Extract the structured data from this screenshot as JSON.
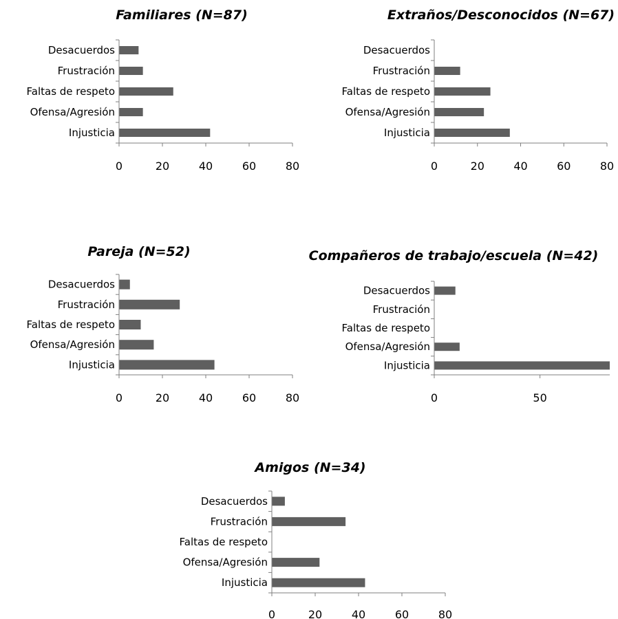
{
  "chart_data": [
    {
      "type": "bar",
      "orientation": "horizontal",
      "title": "Familiares (N=87)",
      "categories": [
        "Desacuerdos",
        "Frustración",
        "Faltas de respeto",
        "Ofensa/Agresión",
        "Injusticia"
      ],
      "values": [
        9,
        11,
        25,
        11,
        42
      ],
      "xlim": [
        0,
        80
      ],
      "xticks": [
        "0",
        "20",
        "40",
        "60",
        "80"
      ],
      "grid": false
    },
    {
      "type": "bar",
      "orientation": "horizontal",
      "title": "Extraños/Desconocidos (N=67)",
      "categories": [
        "Desacuerdos",
        "Frustración",
        "Faltas de respeto",
        "Ofensa/Agresión",
        "Injusticia"
      ],
      "values": [
        0,
        12,
        26,
        23,
        35
      ],
      "xlim": [
        0,
        80
      ],
      "xticks": [
        "0",
        "20",
        "40",
        "60",
        "80"
      ],
      "grid": false
    },
    {
      "type": "bar",
      "orientation": "horizontal",
      "title": "Pareja (N=52)",
      "categories": [
        "Desacuerdos",
        "Frustración",
        "Faltas de respeto",
        "Ofensa/Agresión",
        "Injusticia"
      ],
      "values": [
        5,
        28,
        10,
        16,
        44
      ],
      "xlim": [
        0,
        80
      ],
      "xticks": [
        "0",
        "20",
        "40",
        "60",
        "80"
      ],
      "grid": false
    },
    {
      "type": "bar",
      "orientation": "horizontal",
      "title": "Compañeros de trabajo/escuela (N=42)",
      "categories": [
        "Desacuerdos",
        "Frustración",
        "Faltas de respeto",
        "Ofensa/Agresión",
        "Injusticia"
      ],
      "values": [
        10,
        0,
        0,
        12,
        83
      ],
      "xlim": [
        0,
        83
      ],
      "xticks": [
        "0",
        "50"
      ],
      "grid": false
    },
    {
      "type": "bar",
      "orientation": "horizontal",
      "title": "Amigos (N=34)",
      "categories": [
        "Desacuerdos",
        "Frustración",
        "Faltas de respeto",
        "Ofensa/Agresión",
        "Injusticia"
      ],
      "values": [
        6,
        34,
        0,
        22,
        43
      ],
      "xlim": [
        0,
        80
      ],
      "xticks": [
        "0",
        "20",
        "40",
        "60",
        "80"
      ],
      "grid": false
    }
  ],
  "colors": {
    "bar": "#5f5f5f",
    "axis": "#7f7f7f"
  }
}
